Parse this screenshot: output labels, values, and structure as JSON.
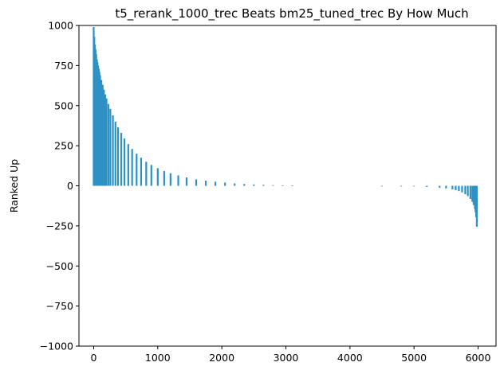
{
  "chart_data": {
    "type": "bar",
    "title": "t5_rerank_1000_trec Beats bm25_tuned_trec By How Much",
    "xlabel": "",
    "ylabel": "Ranked Up",
    "xlim": [
      -230,
      6280
    ],
    "ylim": [
      -1000,
      1000
    ],
    "x_ticks": [
      0,
      1000,
      2000,
      3000,
      4000,
      5000,
      6000
    ],
    "x_tick_labels": [
      "0",
      "1000",
      "2000",
      "3000",
      "4000",
      "5000",
      "6000"
    ],
    "y_ticks": [
      -1000,
      -750,
      -500,
      -250,
      0,
      250,
      500,
      750,
      1000
    ],
    "y_tick_labels": [
      "−1000",
      "−750",
      "−500",
      "−250",
      "0",
      "250",
      "500",
      "750",
      "1000"
    ],
    "bar_color": "#2e91c4",
    "grid": false,
    "series": [
      {
        "x": [
          0,
          10,
          20,
          30,
          40,
          50,
          60,
          70,
          80,
          90,
          100,
          120,
          140,
          160,
          180,
          200,
          230,
          260,
          300,
          340,
          380,
          430,
          480,
          540,
          600,
          670,
          740,
          820,
          900,
          1000,
          1100,
          1200,
          1320,
          1450,
          1600,
          1750,
          1900,
          2050,
          2200,
          2350,
          2500,
          2650,
          2800,
          2950,
          3100,
          4500,
          4800,
          5000,
          5200,
          5400,
          5500,
          5600,
          5650,
          5700,
          5750,
          5800,
          5840,
          5880,
          5910,
          5930,
          5950,
          5960,
          5970,
          5980
        ],
        "values": [
          990,
          930,
          880,
          850,
          820,
          790,
          770,
          750,
          730,
          710,
          690,
          660,
          630,
          600,
          570,
          545,
          510,
          480,
          440,
          400,
          365,
          330,
          295,
          260,
          230,
          200,
          175,
          150,
          130,
          110,
          92,
          78,
          65,
          52,
          40,
          32,
          25,
          20,
          15,
          11,
          8,
          6,
          4,
          3,
          2,
          -1,
          -2,
          -4,
          -7,
          -12,
          -16,
          -22,
          -27,
          -33,
          -41,
          -52,
          -64,
          -82,
          -100,
          -120,
          -145,
          -165,
          -195,
          -255
        ]
      }
    ]
  }
}
